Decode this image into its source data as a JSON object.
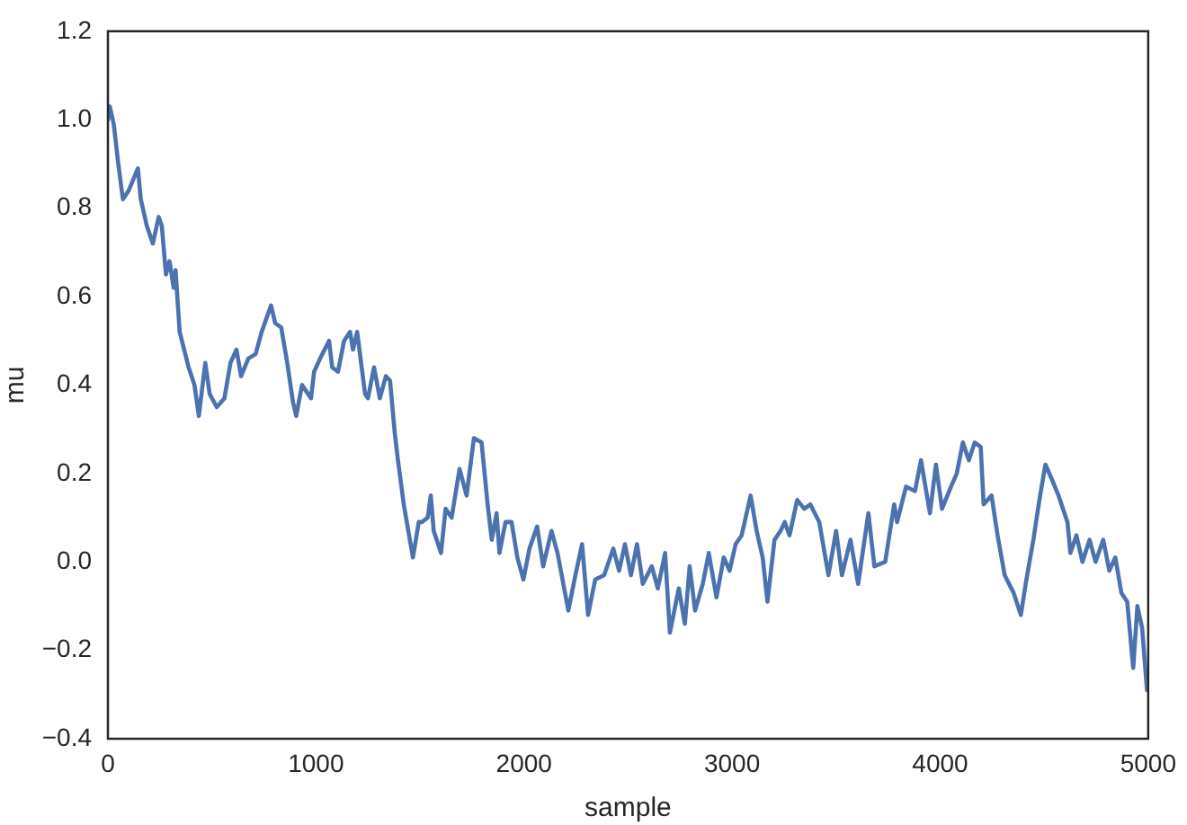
{
  "chart_data": {
    "type": "line",
    "xlabel": "sample",
    "ylabel": "mu",
    "marker": "none",
    "line_style": "solid",
    "grid": false,
    "xlim": [
      0,
      5000
    ],
    "xticks": [
      0,
      1000,
      2000,
      3000,
      4000,
      5000
    ],
    "ylim": [
      -0.4,
      1.2
    ],
    "yticks": [
      {
        "value": -0.4,
        "label": "−0.4"
      },
      {
        "value": -0.2,
        "label": "−0.2"
      },
      {
        "value": 0,
        "label": "0.0"
      },
      {
        "value": 0.2,
        "label": "0.2"
      },
      {
        "value": 0.4,
        "label": "0.4"
      },
      {
        "value": 0.6,
        "label": "0.6"
      },
      {
        "value": 0.8,
        "label": "0.8"
      },
      {
        "value": 1,
        "label": "1.0"
      },
      {
        "value": 1.2,
        "label": "1.2"
      }
    ],
    "x": [
      0,
      9,
      28,
      50,
      72,
      100,
      144,
      158,
      187,
      216,
      244,
      259,
      279,
      296,
      316,
      325,
      345,
      388,
      416,
      437,
      468,
      489,
      523,
      560,
      589,
      618,
      640,
      675,
      710,
      739,
      784,
      804,
      833,
      862,
      890,
      905,
      933,
      976,
      991,
      1020,
      1063,
      1078,
      1106,
      1135,
      1164,
      1178,
      1198,
      1236,
      1250,
      1279,
      1307,
      1336,
      1356,
      1379,
      1394,
      1422,
      1466,
      1494,
      1509,
      1537,
      1552,
      1566,
      1601,
      1623,
      1652,
      1690,
      1724,
      1759,
      1796,
      1825,
      1845,
      1868,
      1882,
      1911,
      1940,
      1968,
      1997,
      2026,
      2063,
      2092,
      2132,
      2161,
      2213,
      2247,
      2279,
      2308,
      2342,
      2385,
      2429,
      2457,
      2485,
      2514,
      2543,
      2571,
      2614,
      2643,
      2678,
      2701,
      2744,
      2773,
      2796,
      2822,
      2859,
      2888,
      2925,
      2960,
      2988,
      3017,
      3046,
      3089,
      3118,
      3147,
      3170,
      3204,
      3233,
      3253,
      3276,
      3313,
      3347,
      3376,
      3419,
      3463,
      3500,
      3528,
      3569,
      3606,
      3655,
      3684,
      3736,
      3779,
      3793,
      3836,
      3879,
      3908,
      3951,
      3980,
      4009,
      4052,
      4080,
      4109,
      4138,
      4166,
      4195,
      4209,
      4247,
      4276,
      4310,
      4353,
      4388,
      4411,
      4448,
      4477,
      4506,
      4534,
      4569,
      4612,
      4626,
      4655,
      4684,
      4718,
      4747,
      4784,
      4813,
      4842,
      4871,
      4899,
      4928,
      4948,
      4971,
      4994,
      5000
    ],
    "series": [
      {
        "color": "#4c72b0",
        "values": [
          1.0,
          1.03,
          0.99,
          0.9,
          0.82,
          0.84,
          0.89,
          0.82,
          0.76,
          0.72,
          0.78,
          0.76,
          0.65,
          0.68,
          0.62,
          0.66,
          0.52,
          0.44,
          0.4,
          0.33,
          0.45,
          0.38,
          0.35,
          0.37,
          0.45,
          0.48,
          0.42,
          0.46,
          0.47,
          0.52,
          0.58,
          0.54,
          0.53,
          0.45,
          0.36,
          0.33,
          0.4,
          0.37,
          0.43,
          0.46,
          0.5,
          0.44,
          0.43,
          0.5,
          0.52,
          0.48,
          0.52,
          0.38,
          0.37,
          0.44,
          0.37,
          0.42,
          0.41,
          0.29,
          0.23,
          0.13,
          0.01,
          0.09,
          0.09,
          0.1,
          0.15,
          0.07,
          0.02,
          0.12,
          0.1,
          0.21,
          0.15,
          0.28,
          0.27,
          0.13,
          0.05,
          0.11,
          0.02,
          0.09,
          0.09,
          0.01,
          -0.04,
          0.03,
          0.08,
          -0.01,
          0.07,
          0.02,
          -0.11,
          -0.03,
          0.04,
          -0.12,
          -0.04,
          -0.03,
          0.03,
          -0.02,
          0.04,
          -0.03,
          0.04,
          -0.05,
          -0.01,
          -0.06,
          0.02,
          -0.16,
          -0.06,
          -0.14,
          -0.01,
          -0.11,
          -0.05,
          0.02,
          -0.08,
          0.01,
          -0.02,
          0.04,
          0.06,
          0.15,
          0.07,
          0.01,
          -0.09,
          0.05,
          0.07,
          0.09,
          0.06,
          0.14,
          0.12,
          0.13,
          0.09,
          -0.03,
          0.07,
          -0.03,
          0.05,
          -0.05,
          0.11,
          -0.01,
          0.0,
          0.13,
          0.09,
          0.17,
          0.16,
          0.23,
          0.11,
          0.22,
          0.12,
          0.17,
          0.2,
          0.27,
          0.23,
          0.27,
          0.26,
          0.13,
          0.15,
          0.06,
          -0.03,
          -0.07,
          -0.12,
          -0.05,
          0.05,
          0.14,
          0.22,
          0.19,
          0.15,
          0.09,
          0.02,
          0.06,
          0.0,
          0.05,
          0.0,
          0.05,
          -0.02,
          0.01,
          -0.07,
          -0.09,
          -0.24,
          -0.1,
          -0.15,
          -0.29,
          -0.28
        ]
      }
    ]
  }
}
